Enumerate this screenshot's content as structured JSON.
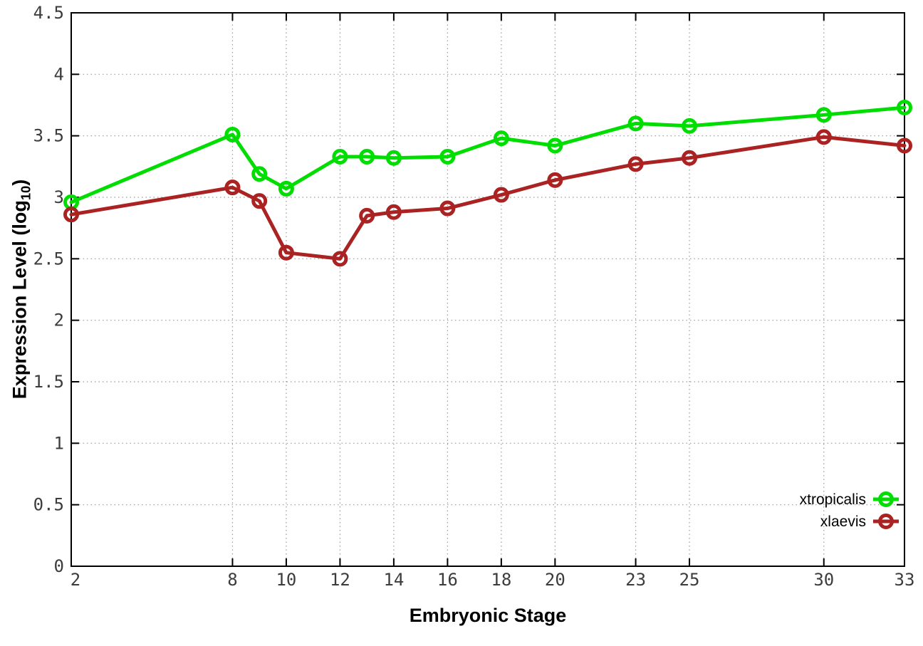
{
  "chart_data": {
    "type": "line",
    "xlabel": "Embryonic Stage",
    "ylabel_prefix": "Expression Level (log",
    "ylabel_sub": "10",
    "ylabel_suffix": ")",
    "x": [
      2,
      8,
      9,
      10,
      12,
      13,
      14,
      16,
      18,
      20,
      23,
      25,
      30,
      33
    ],
    "series": [
      {
        "name": "xtropicalis",
        "color": "#00dd00",
        "values": [
          2.96,
          3.51,
          3.19,
          3.07,
          3.33,
          3.33,
          3.32,
          3.33,
          3.48,
          3.42,
          3.6,
          3.58,
          3.67,
          3.73
        ]
      },
      {
        "name": "xlaevis",
        "color": "#aa2222",
        "values": [
          2.86,
          3.08,
          2.97,
          2.55,
          2.5,
          2.85,
          2.88,
          2.91,
          3.02,
          3.14,
          3.27,
          3.32,
          3.49,
          3.42
        ]
      }
    ],
    "xlim": [
      2,
      33
    ],
    "ylim": [
      0,
      4.5
    ],
    "x_ticks": [
      2,
      8,
      10,
      12,
      14,
      16,
      18,
      20,
      23,
      25,
      30,
      33
    ],
    "x_tick_labels": [
      "2",
      "8",
      "10",
      "12",
      "14",
      "16",
      "18",
      "20",
      "23",
      "25",
      "30",
      "33"
    ],
    "y_ticks": [
      0,
      0.5,
      1,
      1.5,
      2,
      2.5,
      3,
      3.5,
      4,
      4.5
    ],
    "y_tick_labels": [
      "0",
      "0.5",
      "1",
      "1.5",
      "2",
      "2.5",
      "3",
      "3.5",
      "4",
      "4.5"
    ],
    "grid": true,
    "grid_style": "dotted",
    "legend_position": "bottom-right",
    "marker": "open-circle",
    "colors": {
      "border": "#000000",
      "grid": "#999999",
      "tick_label": "#3c3c3c"
    }
  }
}
